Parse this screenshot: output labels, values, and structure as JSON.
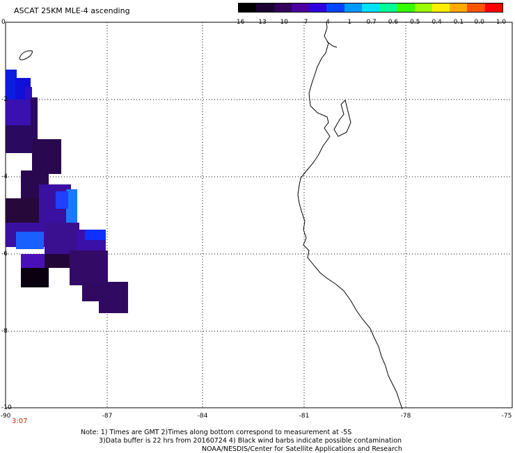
{
  "title": "ASCAT 25KM MLE-4 ascending",
  "colorbar": {
    "labels": [
      "-16",
      "-13",
      "-10",
      "-7",
      "-4",
      "-1",
      "-0.7",
      "-0.6",
      "-0.5",
      "-0.4",
      "-0.1",
      "0.0",
      "1.0"
    ],
    "colors": [
      "#000000",
      "#1a0033",
      "#33005a",
      "#4a00a0",
      "#3000e0",
      "#0044ff",
      "#0099ff",
      "#00e0ff",
      "#00ff99",
      "#33ff00",
      "#99ff00",
      "#ffee00",
      "#ffaa00",
      "#ff5500",
      "#ff0000"
    ]
  },
  "map": {
    "x_ticks": [
      "-90",
      "-87",
      "-84",
      "-81",
      "-78",
      "-75"
    ],
    "y_ticks": [
      "0",
      "-2",
      "-4",
      "-6",
      "-8",
      "-10"
    ],
    "time_label": "3:07"
  },
  "notes": {
    "line1": "Note: 1) Times are GMT 2)Times along bottom correspond to measurement at -5S",
    "line2": "3)Data buffer is 22 hrs from 20160724 4) Black wind barbs indicate possible contamination",
    "line3": "NOAA/NESDIS/Center for Satellite Applications and Research"
  }
}
